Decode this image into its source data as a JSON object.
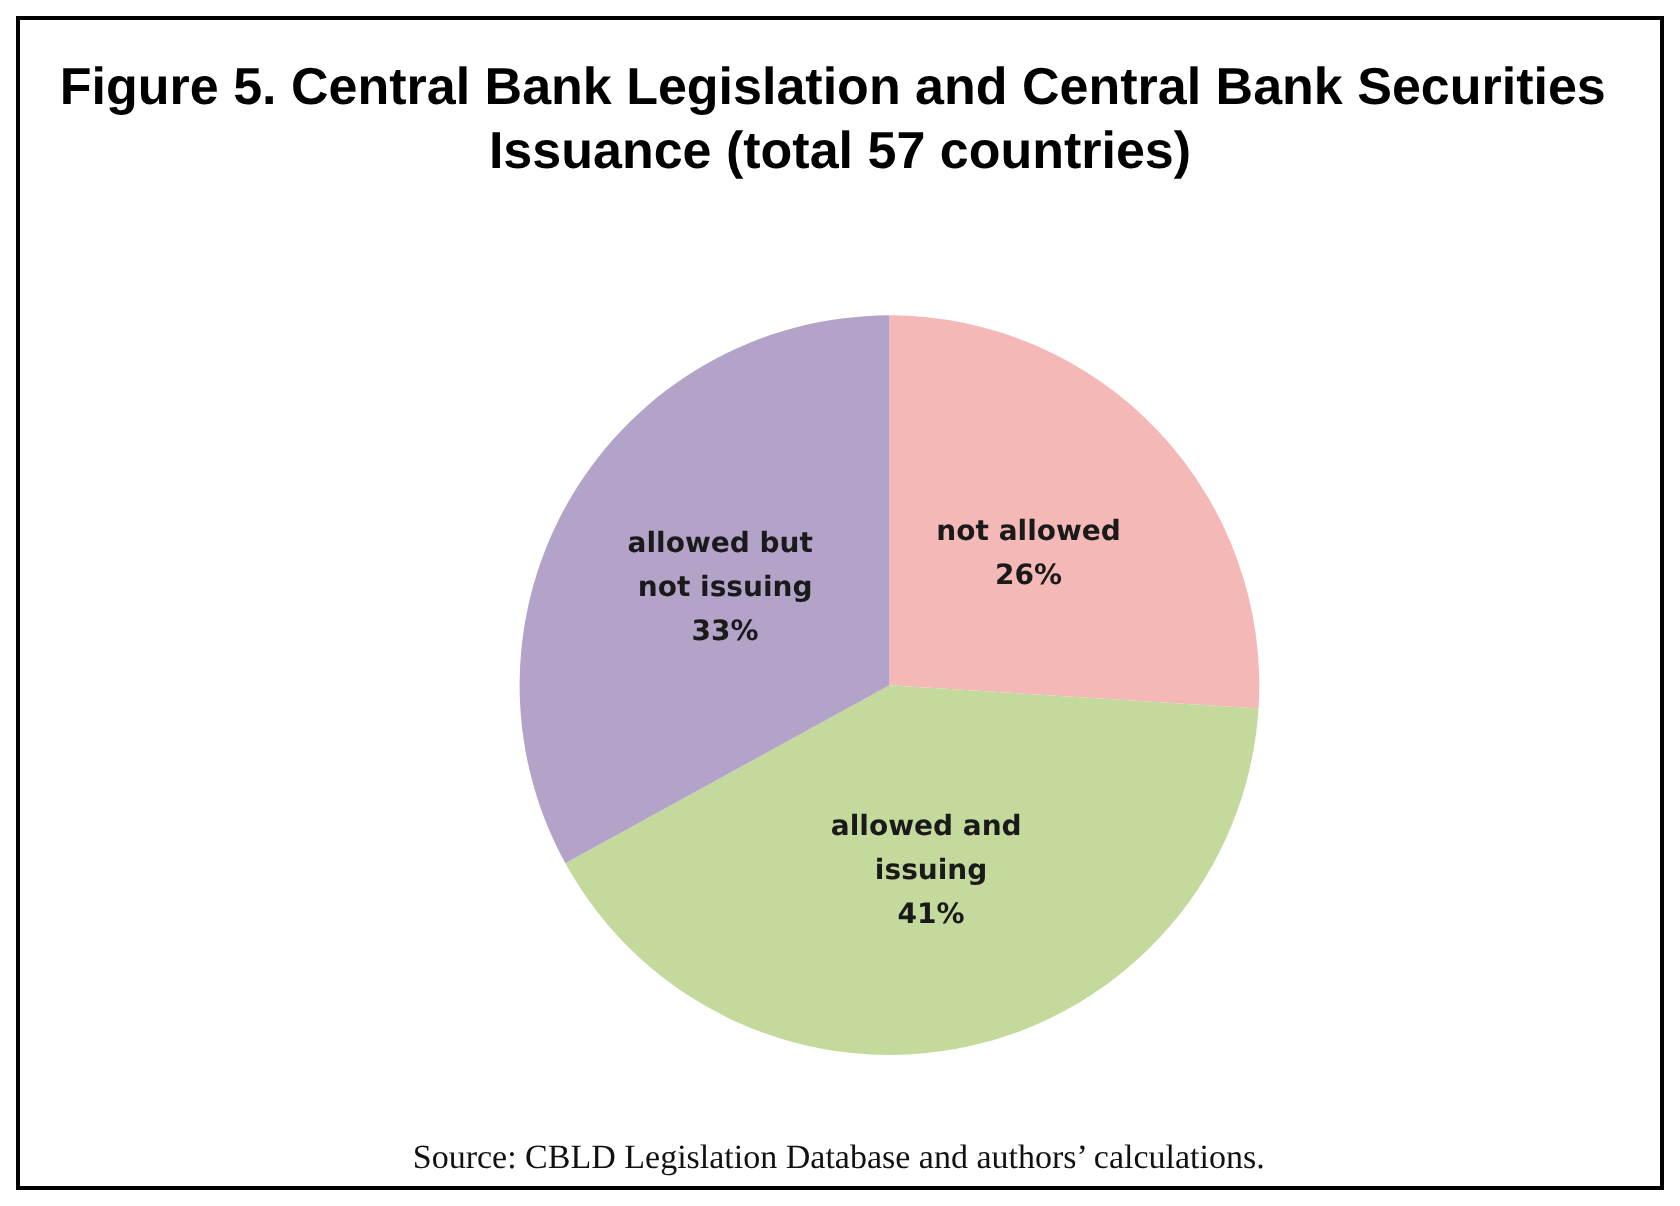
{
  "chart_data": {
    "type": "pie",
    "title": "Figure 5. Central Bank Legislation and Central Bank Securities Issuance (total 57 countries)",
    "categories": [
      "not allowed",
      "allowed and issuing",
      "allowed but not issuing"
    ],
    "values": [
      26,
      41,
      33
    ],
    "value_labels": [
      "26%",
      "41%",
      "33%"
    ],
    "colors": [
      "#f4b8b7",
      "#c4d99c",
      "#b4a3c8"
    ],
    "legend": false,
    "annotations": [
      "Source: CBLD Legislation Database and authors’ calculations."
    ]
  }
}
